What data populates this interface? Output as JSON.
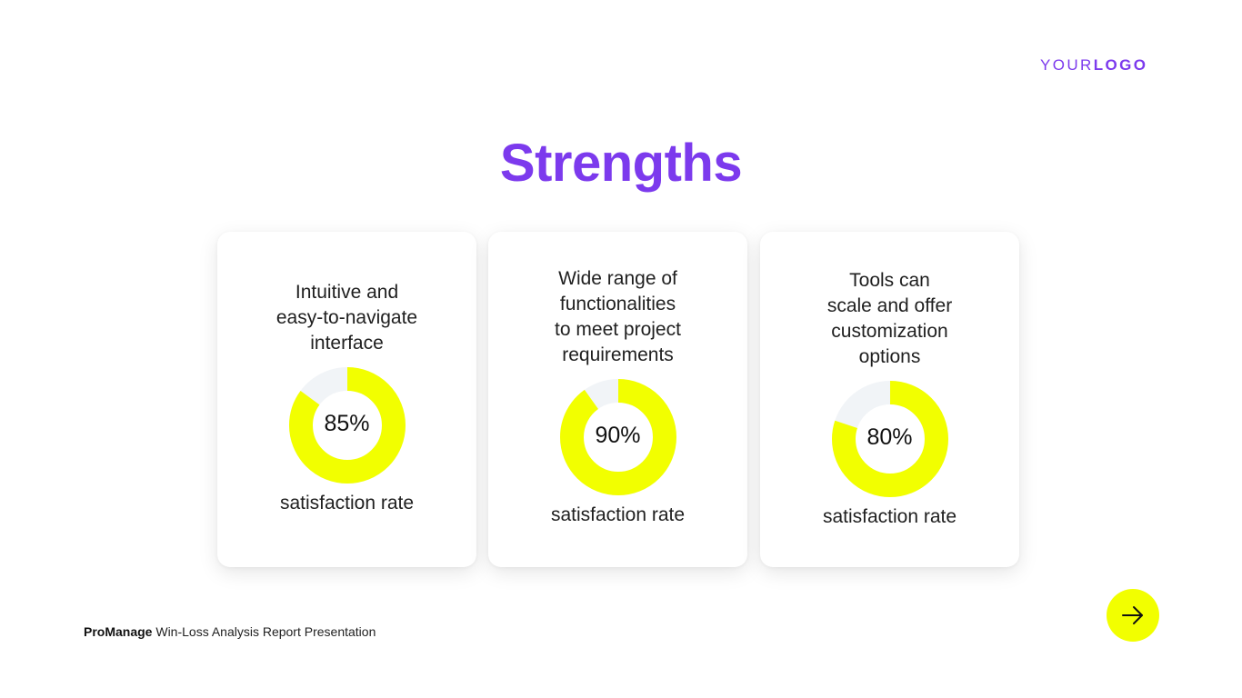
{
  "logo": {
    "light": "YOUR",
    "bold": "LOGO"
  },
  "title": "Strengths",
  "cards": [
    {
      "text": "Intuitive and\neasy-to-navigate\ninterface",
      "value_label": "85%",
      "value": 85,
      "subtitle": "satisfaction rate"
    },
    {
      "text": "Wide range of\nfunctionalities\nto meet project\nrequirements",
      "value_label": "90%",
      "value": 90,
      "subtitle": "satisfaction rate"
    },
    {
      "text": "Tools can\nscale and offer\ncustomization\noptions",
      "value_label": "80%",
      "value": 80,
      "subtitle": "satisfaction rate"
    }
  ],
  "footer": {
    "brand": "ProManage",
    "text": "Win-Loss Analysis Report Presentation"
  },
  "next_button": {
    "icon": "arrow-right-icon"
  },
  "colors": {
    "accent": "#7c3aed",
    "donut_fill": "#f2ff00",
    "donut_track": "#f1f4f7"
  }
}
